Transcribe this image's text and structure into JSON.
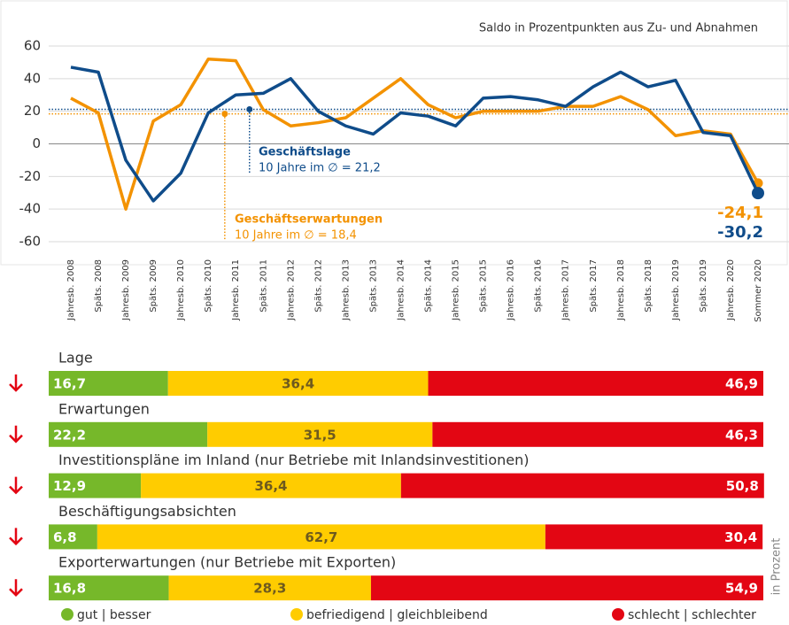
{
  "chart_data": [
    {
      "type": "line",
      "subtitle": "Saldo in Prozentpunkten aus Zu- und Abnahmen",
      "categories": [
        "Jahresb. 2008",
        "Späts. 2008",
        "Jahresb. 2009",
        "Späts. 2009",
        "Jahresb. 2010",
        "Späts. 2010",
        "Jahresb. 2011",
        "Späts. 2011",
        "Jahresb. 2012",
        "Späts. 2012",
        "Jahresb. 2013",
        "Späts. 2013",
        "Jahresb. 2014",
        "Späts. 2014",
        "Jahresb. 2015",
        "Späts. 2015",
        "Jahresb. 2016",
        "Späts. 2016",
        "Jahresb. 2017",
        "Späts. 2017",
        "Jahresb. 2018",
        "Späts. 2018",
        "Jahresb. 2019",
        "Späts. 2019",
        "Jahresb. 2020",
        "Sommer 2020"
      ],
      "series": [
        {
          "name": "Geschäftslage",
          "color": "#0f4c8a",
          "values": [
            47,
            44,
            -10,
            -35,
            -18,
            19,
            30,
            31,
            40,
            20,
            11,
            6,
            19,
            17,
            11,
            28,
            29,
            27,
            23,
            35,
            44,
            35,
            39,
            7,
            5,
            -30.2
          ],
          "value_labels": [
            null,
            null,
            null,
            null,
            null,
            null,
            null,
            null,
            null,
            null,
            null,
            null,
            null,
            null,
            null,
            null,
            null,
            null,
            null,
            null,
            null,
            null,
            null,
            null,
            null,
            "-30,2"
          ],
          "average": 21.2,
          "average_label": "10 Jahre im ∅ = 21,2"
        },
        {
          "name": "Geschäftserwartungen",
          "color": "#f39200",
          "values": [
            28,
            19,
            -40,
            14,
            24,
            52,
            51,
            21,
            11,
            13,
            16,
            28,
            40,
            24,
            16,
            20,
            20,
            20,
            23,
            23,
            29,
            21,
            5,
            8,
            6,
            -24.1
          ],
          "value_labels": [
            null,
            null,
            null,
            null,
            null,
            null,
            null,
            null,
            null,
            null,
            null,
            null,
            null,
            null,
            null,
            null,
            null,
            null,
            null,
            null,
            null,
            null,
            null,
            null,
            null,
            "-24,1"
          ],
          "average": 18.4,
          "average_label": "10 Jahre im ∅ = 18,4"
        }
      ],
      "ylim": [
        -60,
        60
      ],
      "yticks": [
        -60,
        -40,
        -20,
        0,
        20,
        40,
        60
      ],
      "grid": true
    },
    {
      "type": "stacked_barh",
      "categories": [
        "Lage",
        "Erwartungen",
        "Investitionspläne im Inland (nur Betriebe mit Inlandsinvestitionen)",
        "Beschäftigungsabsichten",
        "Exporterwartungen (nur Betriebe mit Exporten)"
      ],
      "series": [
        {
          "name": "gut | besser",
          "color": "#76b82a",
          "values": [
            16.7,
            22.2,
            12.9,
            6.8,
            16.8
          ],
          "value_labels": [
            "16,7",
            "22,2",
            "12,9",
            "6,8",
            "16,8"
          ]
        },
        {
          "name": "befriedigend | gleichbleibend",
          "color": "#ffcc00",
          "values": [
            36.4,
            31.5,
            36.4,
            62.7,
            28.3
          ],
          "value_labels": [
            "36,4",
            "31,5",
            "36,4",
            "62,7",
            "28,3"
          ]
        },
        {
          "name": "schlecht | schlechter",
          "color": "#e30613",
          "values": [
            46.9,
            46.3,
            50.8,
            30.4,
            54.9
          ],
          "value_labels": [
            "46,9",
            "46,3",
            "50,8",
            "30,4",
            "54,9"
          ]
        }
      ],
      "xlim": [
        0,
        100
      ],
      "axis_label": "in Prozent"
    }
  ]
}
